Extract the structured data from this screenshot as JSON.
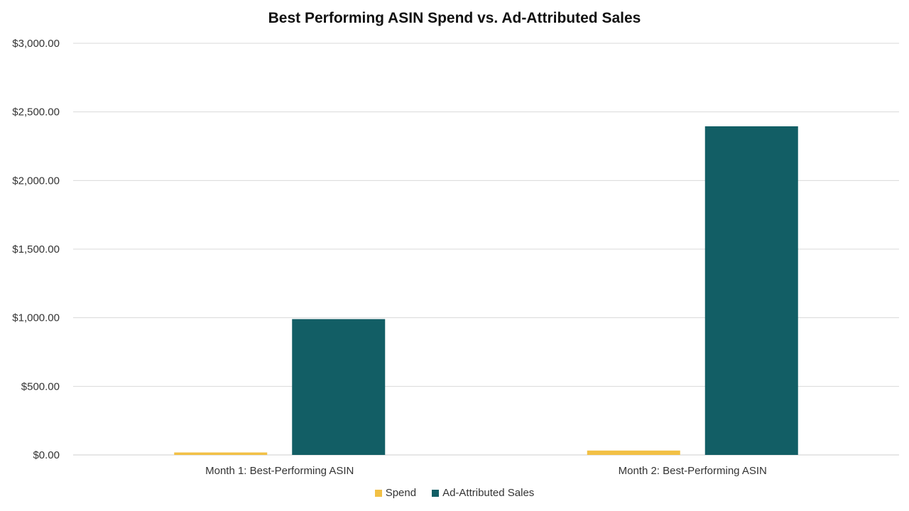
{
  "chart_data": {
    "type": "bar",
    "title": "Best Performing ASIN Spend vs. Ad-Attributed Sales",
    "categories": [
      "Month 1: Best-Performing ASIN",
      "Month 2: Best-Performing ASIN"
    ],
    "series": [
      {
        "name": "Spend",
        "color": "#F2C045",
        "values": [
          18,
          32
        ]
      },
      {
        "name": "Ad-Attributed Sales",
        "color": "#125E65",
        "values": [
          990,
          2395
        ]
      }
    ],
    "y_ticks": [
      "$0.00",
      "$500.00",
      "$1,000.00",
      "$1,500.00",
      "$2,000.00",
      "$2,500.00",
      "$3,000.00"
    ],
    "y_tick_values": [
      0,
      500,
      1000,
      1500,
      2000,
      2500,
      3000
    ],
    "ylim": [
      0,
      3000
    ],
    "xlabel": "",
    "ylabel": "",
    "grid": true,
    "legend_position": "bottom"
  }
}
